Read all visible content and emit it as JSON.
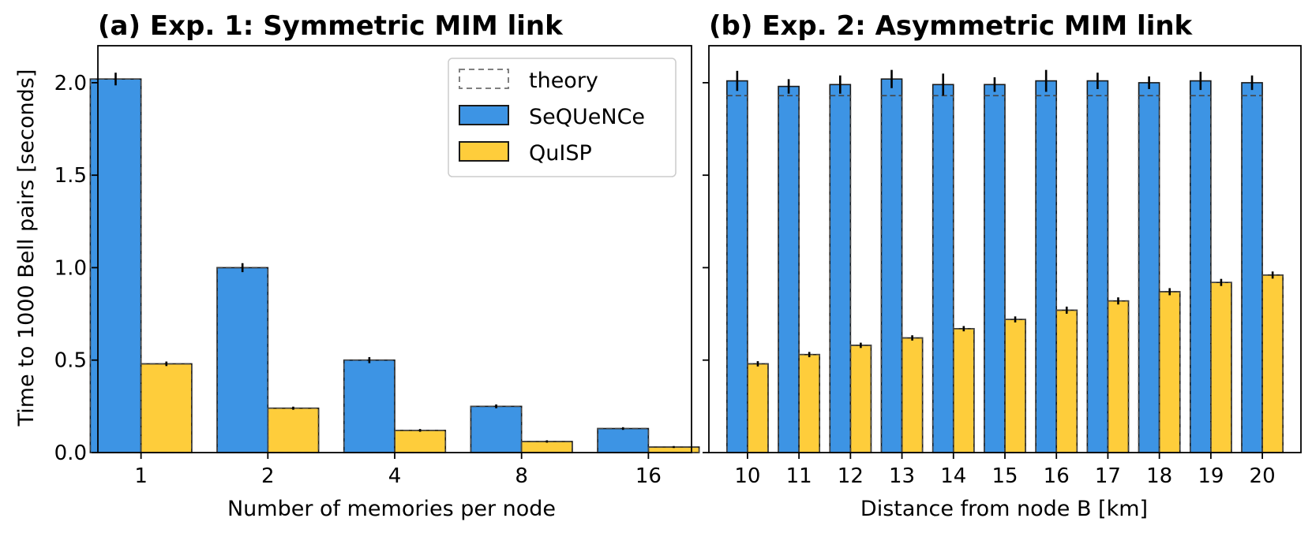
{
  "colors": {
    "sequence": "#3d94e4",
    "quisp": "#fecd3b",
    "edge": "#1a1a1a",
    "theory": "#444444"
  },
  "ylabel": "Time to 1000 Bell pairs [seconds]",
  "legend": [
    {
      "key": "theory",
      "label": "theory",
      "style": "dashed"
    },
    {
      "key": "sequence",
      "label": "SeQUeNCe",
      "style": "fill"
    },
    {
      "key": "quisp",
      "label": "QuISP",
      "style": "fill"
    }
  ],
  "chart_data": [
    {
      "type": "bar",
      "title": "(a) Exp. 1: Symmetric MIM link",
      "xlabel": "Number of memories per node",
      "ylabel": "Time to 1000 Bell pairs [seconds]",
      "ylim": [
        0,
        2.2
      ],
      "yticks": [
        "0.0",
        "0.5",
        "1.0",
        "1.5",
        "2.0"
      ],
      "categories": [
        "1",
        "2",
        "4",
        "8",
        "16"
      ],
      "series": [
        {
          "name": "SeQUeNCe",
          "values": [
            2.02,
            1.0,
            0.5,
            0.25,
            0.13
          ],
          "err": [
            0.03,
            0.02,
            0.012,
            0.006,
            0.003
          ]
        },
        {
          "name": "QuISP",
          "values": [
            0.48,
            0.24,
            0.12,
            0.06,
            0.03
          ],
          "err": [
            0.008,
            0.004,
            0.003,
            0.002,
            0.001
          ]
        }
      ],
      "theory": [
        {
          "name": "SeQUeNCe",
          "values": [
            2.02,
            1.0,
            0.5,
            0.25,
            0.13
          ]
        },
        {
          "name": "QuISP",
          "values": [
            0.48,
            0.24,
            0.12,
            0.06,
            0.03
          ]
        }
      ],
      "legend_position": "top-right",
      "grid": false
    },
    {
      "type": "bar",
      "title": "(b) Exp. 2: Asymmetric MIM link",
      "xlabel": "Distance from node B [km]",
      "ylim": [
        0,
        2.2
      ],
      "categories": [
        "10",
        "11",
        "12",
        "13",
        "14",
        "15",
        "16",
        "17",
        "18",
        "19",
        "20"
      ],
      "series": [
        {
          "name": "SeQUeNCe",
          "values": [
            2.01,
            1.98,
            1.99,
            2.02,
            1.99,
            1.99,
            2.01,
            2.01,
            2.0,
            2.01,
            2.0
          ],
          "err": [
            0.05,
            0.035,
            0.045,
            0.045,
            0.055,
            0.035,
            0.055,
            0.04,
            0.03,
            0.045,
            0.035
          ]
        },
        {
          "name": "QuISP",
          "values": [
            0.48,
            0.53,
            0.58,
            0.62,
            0.67,
            0.72,
            0.77,
            0.82,
            0.87,
            0.92,
            0.96
          ],
          "err": [
            0.01,
            0.01,
            0.01,
            0.01,
            0.01,
            0.012,
            0.015,
            0.015,
            0.015,
            0.015,
            0.015
          ]
        }
      ],
      "theory": [
        {
          "name": "SeQUeNCe",
          "values": [
            1.93,
            1.93,
            1.93,
            1.93,
            1.93,
            1.93,
            1.93,
            1.93,
            1.93,
            1.93,
            1.93
          ]
        },
        {
          "name": "QuISP",
          "values": [
            0.48,
            0.53,
            0.58,
            0.62,
            0.67,
            0.72,
            0.77,
            0.82,
            0.87,
            0.92,
            0.96
          ]
        }
      ],
      "grid": false
    }
  ]
}
